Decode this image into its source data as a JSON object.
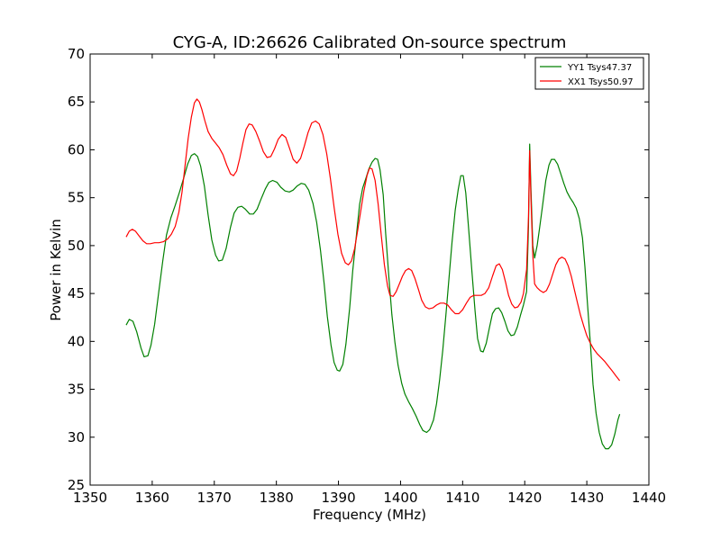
{
  "chart_data": {
    "type": "line",
    "title": "CYG-A, ID:26626 Calibrated On-source spectrum",
    "xlabel": "Frequency (MHz)",
    "ylabel": "Power in Kelvin",
    "xlim": [
      1350,
      1440
    ],
    "ylim": [
      25,
      70
    ],
    "xticks": [
      1350,
      1360,
      1370,
      1380,
      1390,
      1400,
      1410,
      1420,
      1430,
      1440
    ],
    "yticks": [
      25,
      30,
      35,
      40,
      45,
      50,
      55,
      60,
      65,
      70
    ],
    "grid": false,
    "legend_position": "top-right",
    "series": [
      {
        "name": "YY1 Tsys47.37",
        "color": "#008000",
        "points": [
          [
            1355.8,
            41.7
          ],
          [
            1356.3,
            42.3
          ],
          [
            1356.9,
            42.1
          ],
          [
            1357.5,
            41.0
          ],
          [
            1358.2,
            39.3
          ],
          [
            1358.7,
            38.4
          ],
          [
            1359.3,
            38.5
          ],
          [
            1359.8,
            39.6
          ],
          [
            1360.4,
            41.8
          ],
          [
            1361.0,
            44.9
          ],
          [
            1361.7,
            48.4
          ],
          [
            1362.3,
            51.1
          ],
          [
            1363.0,
            52.9
          ],
          [
            1363.7,
            54.2
          ],
          [
            1364.4,
            55.6
          ],
          [
            1365.1,
            57.1
          ],
          [
            1365.7,
            58.5
          ],
          [
            1366.3,
            59.4
          ],
          [
            1366.8,
            59.6
          ],
          [
            1367.3,
            59.3
          ],
          [
            1367.8,
            58.3
          ],
          [
            1368.4,
            56.2
          ],
          [
            1369.0,
            53.2
          ],
          [
            1369.6,
            50.6
          ],
          [
            1370.2,
            49.0
          ],
          [
            1370.7,
            48.4
          ],
          [
            1371.3,
            48.5
          ],
          [
            1371.9,
            49.7
          ],
          [
            1372.6,
            51.9
          ],
          [
            1373.2,
            53.4
          ],
          [
            1373.8,
            54.0
          ],
          [
            1374.4,
            54.1
          ],
          [
            1375.0,
            53.8
          ],
          [
            1375.7,
            53.3
          ],
          [
            1376.3,
            53.3
          ],
          [
            1376.9,
            53.8
          ],
          [
            1377.5,
            54.8
          ],
          [
            1378.2,
            55.9
          ],
          [
            1378.8,
            56.6
          ],
          [
            1379.4,
            56.8
          ],
          [
            1380.1,
            56.6
          ],
          [
            1380.7,
            56.1
          ],
          [
            1381.4,
            55.7
          ],
          [
            1382.1,
            55.6
          ],
          [
            1382.7,
            55.8
          ],
          [
            1383.3,
            56.2
          ],
          [
            1384.0,
            56.5
          ],
          [
            1384.6,
            56.4
          ],
          [
            1385.2,
            55.8
          ],
          [
            1385.9,
            54.4
          ],
          [
            1386.5,
            52.4
          ],
          [
            1387.1,
            49.5
          ],
          [
            1387.7,
            46.0
          ],
          [
            1388.2,
            42.6
          ],
          [
            1388.8,
            39.6
          ],
          [
            1389.3,
            37.8
          ],
          [
            1389.8,
            37.0
          ],
          [
            1390.2,
            36.9
          ],
          [
            1390.7,
            37.6
          ],
          [
            1391.2,
            39.7
          ],
          [
            1391.8,
            43.5
          ],
          [
            1392.3,
            47.4
          ],
          [
            1392.9,
            51.1
          ],
          [
            1393.4,
            54.3
          ],
          [
            1393.9,
            56.0
          ],
          [
            1394.4,
            57.0
          ],
          [
            1394.9,
            58.0
          ],
          [
            1395.4,
            58.7
          ],
          [
            1395.9,
            59.1
          ],
          [
            1396.3,
            59.0
          ],
          [
            1396.7,
            57.9
          ],
          [
            1397.2,
            55.3
          ],
          [
            1397.6,
            51.3
          ],
          [
            1398.1,
            46.8
          ],
          [
            1398.6,
            42.8
          ],
          [
            1399.1,
            39.9
          ],
          [
            1399.6,
            37.5
          ],
          [
            1400.2,
            35.6
          ],
          [
            1400.7,
            34.5
          ],
          [
            1401.3,
            33.7
          ],
          [
            1401.9,
            33.0
          ],
          [
            1402.5,
            32.2
          ],
          [
            1403.1,
            31.3
          ],
          [
            1403.6,
            30.7
          ],
          [
            1404.2,
            30.5
          ],
          [
            1404.7,
            30.8
          ],
          [
            1405.3,
            31.8
          ],
          [
            1405.8,
            33.5
          ],
          [
            1406.3,
            36.0
          ],
          [
            1406.8,
            39.1
          ],
          [
            1407.3,
            42.7
          ],
          [
            1407.8,
            46.6
          ],
          [
            1408.3,
            50.4
          ],
          [
            1408.8,
            53.7
          ],
          [
            1409.3,
            55.9
          ],
          [
            1409.7,
            57.3
          ],
          [
            1410.1,
            57.3
          ],
          [
            1410.5,
            55.5
          ],
          [
            1411.0,
            51.5
          ],
          [
            1411.5,
            47.2
          ],
          [
            1412.0,
            43.2
          ],
          [
            1412.4,
            40.3
          ],
          [
            1412.9,
            39.0
          ],
          [
            1413.3,
            38.9
          ],
          [
            1413.8,
            39.8
          ],
          [
            1414.3,
            41.4
          ],
          [
            1414.8,
            42.9
          ],
          [
            1415.3,
            43.4
          ],
          [
            1415.8,
            43.5
          ],
          [
            1416.3,
            43.0
          ],
          [
            1416.8,
            42.1
          ],
          [
            1417.3,
            41.1
          ],
          [
            1417.8,
            40.6
          ],
          [
            1418.3,
            40.7
          ],
          [
            1418.8,
            41.5
          ],
          [
            1419.3,
            42.7
          ],
          [
            1419.8,
            43.8
          ],
          [
            1420.3,
            45.2
          ],
          [
            1420.6,
            52.0
          ],
          [
            1420.8,
            60.6
          ],
          [
            1421.0,
            56.0
          ],
          [
            1421.3,
            50.0
          ],
          [
            1421.6,
            48.7
          ],
          [
            1422.0,
            50.0
          ],
          [
            1422.4,
            51.9
          ],
          [
            1422.9,
            54.3
          ],
          [
            1423.4,
            56.8
          ],
          [
            1423.9,
            58.4
          ],
          [
            1424.3,
            59.0
          ],
          [
            1424.8,
            59.0
          ],
          [
            1425.3,
            58.5
          ],
          [
            1425.8,
            57.5
          ],
          [
            1426.3,
            56.5
          ],
          [
            1426.8,
            55.6
          ],
          [
            1427.3,
            55.0
          ],
          [
            1427.8,
            54.5
          ],
          [
            1428.3,
            53.9
          ],
          [
            1428.8,
            52.8
          ],
          [
            1429.3,
            50.8
          ],
          [
            1429.7,
            47.8
          ],
          [
            1430.1,
            44.0
          ],
          [
            1430.6,
            39.6
          ],
          [
            1431.0,
            35.5
          ],
          [
            1431.5,
            32.5
          ],
          [
            1432.0,
            30.5
          ],
          [
            1432.5,
            29.3
          ],
          [
            1433.0,
            28.8
          ],
          [
            1433.5,
            28.8
          ],
          [
            1434.0,
            29.2
          ],
          [
            1434.5,
            30.3
          ],
          [
            1435.0,
            31.8
          ],
          [
            1435.3,
            32.4
          ]
        ]
      },
      {
        "name": "XX1 Tsys50.97",
        "color": "#ff0000",
        "points": [
          [
            1355.8,
            50.9
          ],
          [
            1356.3,
            51.5
          ],
          [
            1356.8,
            51.7
          ],
          [
            1357.3,
            51.5
          ],
          [
            1357.9,
            51.0
          ],
          [
            1358.5,
            50.5
          ],
          [
            1359.1,
            50.2
          ],
          [
            1359.7,
            50.2
          ],
          [
            1360.4,
            50.3
          ],
          [
            1361.1,
            50.3
          ],
          [
            1361.8,
            50.4
          ],
          [
            1362.5,
            50.7
          ],
          [
            1363.1,
            51.2
          ],
          [
            1363.7,
            52.0
          ],
          [
            1364.3,
            53.5
          ],
          [
            1364.8,
            55.6
          ],
          [
            1365.3,
            58.4
          ],
          [
            1365.8,
            61.2
          ],
          [
            1366.3,
            63.4
          ],
          [
            1366.8,
            64.9
          ],
          [
            1367.2,
            65.3
          ],
          [
            1367.6,
            65.0
          ],
          [
            1368.0,
            64.2
          ],
          [
            1368.5,
            63.0
          ],
          [
            1369.0,
            61.9
          ],
          [
            1369.6,
            61.2
          ],
          [
            1370.2,
            60.7
          ],
          [
            1370.8,
            60.2
          ],
          [
            1371.4,
            59.5
          ],
          [
            1372.0,
            58.4
          ],
          [
            1372.6,
            57.5
          ],
          [
            1373.1,
            57.3
          ],
          [
            1373.6,
            57.8
          ],
          [
            1374.1,
            59.1
          ],
          [
            1374.6,
            60.7
          ],
          [
            1375.1,
            62.1
          ],
          [
            1375.6,
            62.7
          ],
          [
            1376.1,
            62.6
          ],
          [
            1376.7,
            61.9
          ],
          [
            1377.3,
            60.9
          ],
          [
            1377.9,
            59.8
          ],
          [
            1378.5,
            59.2
          ],
          [
            1379.1,
            59.3
          ],
          [
            1379.7,
            60.1
          ],
          [
            1380.3,
            61.1
          ],
          [
            1380.9,
            61.6
          ],
          [
            1381.5,
            61.3
          ],
          [
            1382.1,
            60.2
          ],
          [
            1382.7,
            59.0
          ],
          [
            1383.3,
            58.6
          ],
          [
            1383.9,
            59.1
          ],
          [
            1384.5,
            60.4
          ],
          [
            1385.1,
            61.8
          ],
          [
            1385.7,
            62.8
          ],
          [
            1386.3,
            63.0
          ],
          [
            1386.9,
            62.7
          ],
          [
            1387.5,
            61.6
          ],
          [
            1388.1,
            59.6
          ],
          [
            1388.7,
            57.0
          ],
          [
            1389.3,
            54.0
          ],
          [
            1389.9,
            51.2
          ],
          [
            1390.5,
            49.2
          ],
          [
            1391.1,
            48.2
          ],
          [
            1391.6,
            48.0
          ],
          [
            1392.1,
            48.4
          ],
          [
            1392.6,
            49.7
          ],
          [
            1393.1,
            51.6
          ],
          [
            1393.6,
            53.7
          ],
          [
            1394.1,
            55.7
          ],
          [
            1394.6,
            57.3
          ],
          [
            1395.0,
            58.1
          ],
          [
            1395.4,
            58.0
          ],
          [
            1395.9,
            56.8
          ],
          [
            1396.4,
            54.3
          ],
          [
            1396.9,
            51.0
          ],
          [
            1397.4,
            48.0
          ],
          [
            1397.9,
            45.8
          ],
          [
            1398.3,
            44.8
          ],
          [
            1398.8,
            44.7
          ],
          [
            1399.3,
            45.2
          ],
          [
            1399.8,
            46.0
          ],
          [
            1400.3,
            46.8
          ],
          [
            1400.8,
            47.4
          ],
          [
            1401.3,
            47.6
          ],
          [
            1401.8,
            47.4
          ],
          [
            1402.3,
            46.6
          ],
          [
            1402.9,
            45.4
          ],
          [
            1403.4,
            44.3
          ],
          [
            1404.0,
            43.6
          ],
          [
            1404.6,
            43.4
          ],
          [
            1405.2,
            43.5
          ],
          [
            1405.8,
            43.8
          ],
          [
            1406.4,
            44.0
          ],
          [
            1407.0,
            44.0
          ],
          [
            1407.6,
            43.8
          ],
          [
            1408.2,
            43.3
          ],
          [
            1408.8,
            42.9
          ],
          [
            1409.4,
            42.9
          ],
          [
            1410.0,
            43.3
          ],
          [
            1410.6,
            44.0
          ],
          [
            1411.2,
            44.6
          ],
          [
            1411.8,
            44.8
          ],
          [
            1412.4,
            44.8
          ],
          [
            1413.0,
            44.8
          ],
          [
            1413.6,
            45.0
          ],
          [
            1414.2,
            45.6
          ],
          [
            1414.8,
            46.8
          ],
          [
            1415.4,
            47.9
          ],
          [
            1415.9,
            48.1
          ],
          [
            1416.4,
            47.5
          ],
          [
            1416.9,
            46.2
          ],
          [
            1417.4,
            44.8
          ],
          [
            1417.9,
            43.9
          ],
          [
            1418.4,
            43.5
          ],
          [
            1418.9,
            43.6
          ],
          [
            1419.4,
            44.1
          ],
          [
            1419.8,
            45.0
          ],
          [
            1420.3,
            47.5
          ],
          [
            1420.6,
            53.0
          ],
          [
            1420.8,
            59.9
          ],
          [
            1421.0,
            55.0
          ],
          [
            1421.3,
            49.0
          ],
          [
            1421.6,
            46.0
          ],
          [
            1422.0,
            45.6
          ],
          [
            1422.5,
            45.3
          ],
          [
            1423.0,
            45.1
          ],
          [
            1423.5,
            45.3
          ],
          [
            1424.0,
            46.0
          ],
          [
            1424.5,
            47.0
          ],
          [
            1425.0,
            48.0
          ],
          [
            1425.5,
            48.6
          ],
          [
            1426.0,
            48.8
          ],
          [
            1426.5,
            48.6
          ],
          [
            1427.0,
            47.9
          ],
          [
            1427.5,
            46.8
          ],
          [
            1428.0,
            45.4
          ],
          [
            1428.5,
            44.0
          ],
          [
            1429.0,
            42.7
          ],
          [
            1429.5,
            41.6
          ],
          [
            1430.0,
            40.6
          ],
          [
            1430.5,
            39.9
          ],
          [
            1431.1,
            39.2
          ],
          [
            1431.7,
            38.7
          ],
          [
            1432.3,
            38.3
          ],
          [
            1432.9,
            37.9
          ],
          [
            1433.5,
            37.4
          ],
          [
            1434.1,
            36.9
          ],
          [
            1434.7,
            36.4
          ],
          [
            1435.3,
            35.9
          ]
        ]
      }
    ]
  }
}
